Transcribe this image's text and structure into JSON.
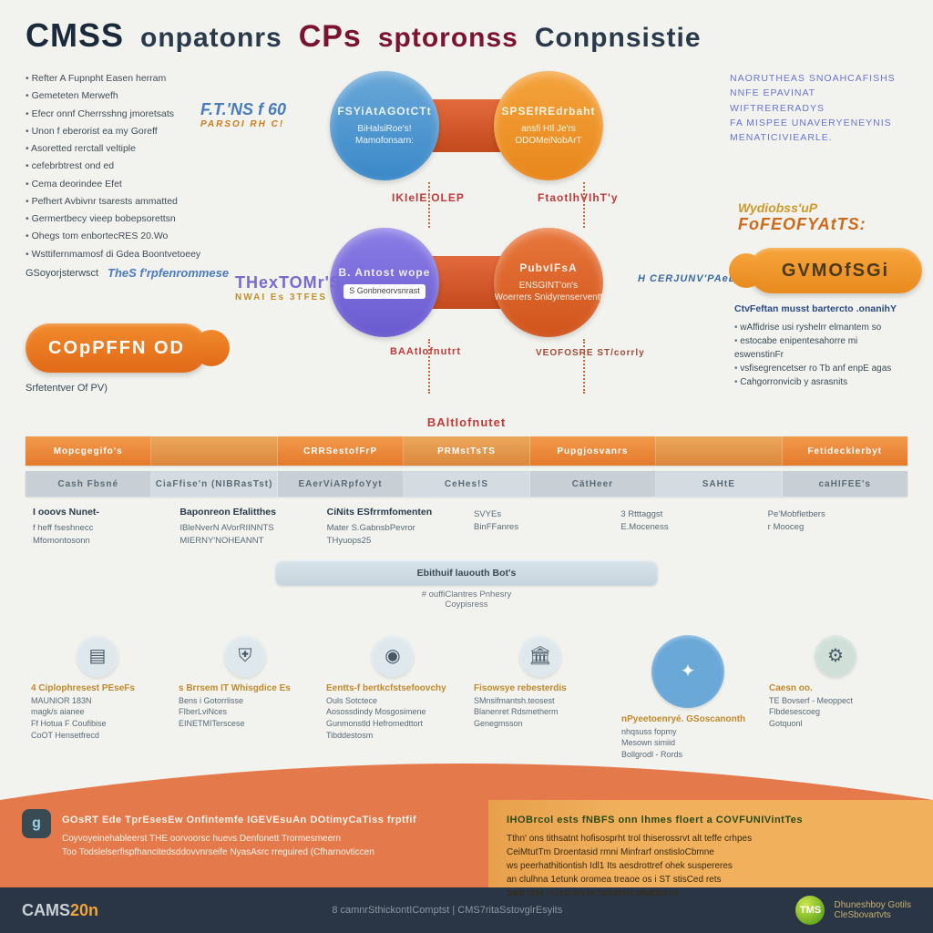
{
  "colors": {
    "bg": "#f2f2ee",
    "navy": "#1b2a3a",
    "maroon": "#7a1430",
    "orange": "#e47a2c",
    "orange_dark": "#d0541c",
    "orange_light": "#f4a33c",
    "blue": "#3a88c8",
    "purple": "#6a5ad0",
    "grey_seg": "#c8d0d6",
    "footer_navy": "#2a3646",
    "footer_orange": "#e47a4c",
    "footer_gold": "#f0b05c"
  },
  "header": {
    "p1": "CMSS",
    "p2": "onpatonrs",
    "p3": "CPs",
    "p4": "sptoronss",
    "p5": "Conpnsistie"
  },
  "left_list": [
    "Refter A Fupnpht Easen herram",
    "Gemeteten Merwefh",
    "Efecr onnf Cherrsshng jmoretsats",
    "Unon f eberorist ea my Goreff",
    "Asoretted rerctall veltiple",
    "cefebrbtrest ond ed",
    "Cema deorindee Efet",
    "Pefhert Avbivnr tsarests ammatted",
    "Germertbecy vieep bobepsorettsn",
    "Ohegs tom enbortecRES 20.Wo",
    "Wsttifernmamosf di Gdea Boontvetoeey"
  ],
  "left_wordmark": {
    "t": "F.T.'NS f 60",
    "s": "PARSOI RH C!"
  },
  "right_list": [
    "NAORUTHEAS SNOAHCAFISHS",
    "NNFE EPAVINAT WIFTRERERADYS",
    "FA MISPEE UNAVERYENEYNIS",
    "MENATICIVIEARLE."
  ],
  "right_wordmark": {
    "l1": "Wydiobss'uP",
    "l2": "FoFEOFYAtTS:"
  },
  "pill_left": "COpPFFN OD",
  "pill_right": "GVMOfSGi",
  "below_pill": "Srfetentver Of PV)",
  "sub_left1": "GSoyorjsterwsct",
  "sub_left2": "TheS f'rpfenrommese",
  "side_left": {
    "t": "THexTOMr'S",
    "s": "NWAI Es 3TFES"
  },
  "side_right": "H CERJUNV'PAeLTCiNES",
  "duo_top": {
    "left": {
      "title": "FSYiAtAGOtCTt",
      "l1": "BiHalsiRoe's!",
      "l2": "Mamofonsarn:"
    },
    "right": {
      "title": "SPSEfREdrbaht",
      "l1": "ansfi HIl Je'rs",
      "l2": "ODOMeiNobArT"
    },
    "lab_left": "IKIelE'OLEP",
    "lab_right": "FtaotlhVIhT'y"
  },
  "duo_bot": {
    "left": {
      "title": "B. Antost wope",
      "l1": "S Gonbneorvsnrast"
    },
    "right": {
      "title": "PubvIFsA",
      "l1": "ENSGINT'on's",
      "l2": "Woerrers Snidyrenserventt"
    },
    "lab_left": "BAAtIofnutrt",
    "lab_right": "VEOFOSRE ST/corrly"
  },
  "right_sub": {
    "title": "CtvFeftan musst bartercto .onanihY",
    "items": [
      "wAffidrise usi ryshelrr elmantem so",
      "estocabe enipentesahorre mi eswenstinFr",
      "vsfisegrencetser ro Tb anf enpE agas",
      "Cahgorronvicib y asrasnits"
    ]
  },
  "mid_title": "BAltIofnutet",
  "bar1": [
    "Mopcgegifo's",
    "",
    "CRRSestofFrP",
    "PRMstTsTS",
    "Pupgjosvanrs",
    "",
    "Fetidecklerbyt"
  ],
  "bar2": [
    "Cash Fbsné",
    "CiaFfise'n (NIBRasTst)",
    "EAerViARpfoYyt",
    "CeHes!S",
    "CätHeer",
    "SAHtE",
    "caHIFEE's"
  ],
  "cols": [
    {
      "h": "I ooovs Nunet-",
      "b": "f heff fseshnecc\nMfomontosonn"
    },
    {
      "h": "Baponreon Efalitthes",
      "b": "IBleNverN AVorRIINNTS\nMIERNY'NOHEANNT"
    },
    {
      "h": "CiNits ESfrrmfomenten",
      "b": "Mater S.GabnsbPevror\nTHyuops25"
    },
    {
      "h": "",
      "b": "SVYEs\nBinFFanres"
    },
    {
      "h": "",
      "b": "3 Rtttaggst\nE.Moceness"
    },
    {
      "h": "",
      "b": "Pe'Mobfletbers\nr Mooceg"
    }
  ],
  "badge_row": "Ebithuif lauouth Bot's",
  "badge_row_sub": "# ouffiClantres Pnhesry\nCoypisress",
  "iconrow": [
    {
      "color": "#dfe8ec",
      "lead": "4 Ciplophresest PEseFs",
      "body": "MAUNIOR 183N\nmagk/s aianee\nFf Hotua F Coufibise\nCoOT Hensetfrecd"
    },
    {
      "color": "#dfe8ec",
      "lead": "s Brrsem IT Whisgdice Es",
      "body": "Bens i Gotorrlisse\nFIberLviNces\nEINETMITerscese"
    },
    {
      "color": "#dfe8ec",
      "lead": "Eentts-f bertkcfstsefoovchy",
      "body": "Ouls Sotctece\nAosossdindy Mosgosimene\nGunmonstld Hefromedttort\nTibddestosm"
    },
    {
      "color": "#dfe8ec",
      "lead": "Fisowsye rebesterdis",
      "body": "SMnsifmantsh.teosest\nBlanenret Rdsmetherm\nGenegmsson"
    },
    {
      "color": "#6aa8d8",
      "lead": "nPyeetoenryé. GSoscanonth",
      "body": "nhqsuss fopmy\nMesown simiid\nBollgrodl - Rords"
    },
    {
      "color": "#d0e0d8",
      "lead": "Caesn oo.",
      "body": "TE Bovserf - Meoppect\nFlbdesescoeg\nGotquonl"
    }
  ],
  "footer": {
    "left_lead": "GOsRT Ede TprEsesEw Onfintemfe IGEVEsuAn DOtimyCaTiss frptfif",
    "left_body": "Coyvoyeinehableerst THE oorvoorsc huevs Denfonett Trormesmeern\nToo Todslelserfispfhancitedsddovvnrseife NyasAsrc rreguired (Cfharnovticcen",
    "right_lead": "IHOBrcol ests fNBFS onn lhmes floert a COVFUNIVintTes",
    "right_body": "Tthn' ons tithsatnt hofisosprht trol thiserossrvt alt teffe crhpes\nCeiMtutTm Droentasid rmni Minfrarf onstisloCbmne\nws peerhathitiontish Idl1 Its aesdrottref ohek suspereres\nan clulhna 1etunk oromea treaoe os i ST stisCed rets\nbadt stlet - Gesmveve herutene pltaldtorns",
    "bar_logo_a": "CAMS",
    "bar_logo_b": "20n",
    "bar_mid": "8 camnrSthickontIComptst | CMS7ritaSstovglrEsyits",
    "bar_r1": "Dhuneshboy Gotils",
    "bar_r2": "CleSbovartvts",
    "tms": "TMS"
  }
}
